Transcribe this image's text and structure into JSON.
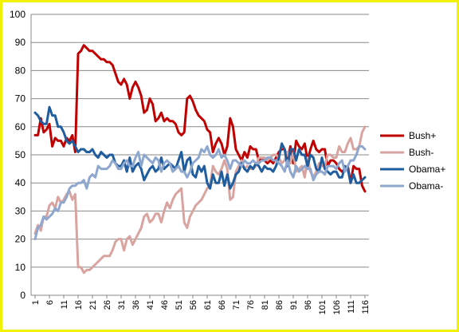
{
  "chart_data": {
    "type": "line",
    "title": "",
    "xlabel": "",
    "ylabel": "",
    "ylim": [
      0,
      100
    ],
    "yticks": [
      0,
      10,
      20,
      30,
      40,
      50,
      60,
      70,
      80,
      90,
      100
    ],
    "xlim": [
      1,
      116
    ],
    "xticks": [
      1,
      6,
      11,
      16,
      21,
      26,
      31,
      36,
      41,
      46,
      51,
      56,
      61,
      66,
      71,
      76,
      81,
      86,
      91,
      96,
      101,
      106,
      111,
      116
    ],
    "grid": "horizontal",
    "legend": "right",
    "series": [
      {
        "name": "Bush+",
        "color": "#c00000",
        "x": [
          1,
          2,
          3,
          4,
          5,
          6,
          7,
          8,
          9,
          10,
          11,
          12,
          13,
          14,
          15,
          16,
          17,
          18,
          19,
          20,
          21,
          22,
          23,
          24,
          25,
          26,
          27,
          28,
          29,
          30,
          31,
          32,
          33,
          34,
          35,
          36,
          37,
          38,
          39,
          40,
          41,
          42,
          43,
          44,
          45,
          46,
          47,
          48,
          49,
          50,
          51,
          52,
          53,
          54,
          55,
          56,
          57,
          58,
          59,
          60,
          61,
          62,
          63,
          64,
          65,
          66,
          67,
          68,
          69,
          70,
          71,
          72,
          73,
          74,
          75,
          76,
          77,
          78,
          79,
          80,
          81,
          82,
          83,
          84,
          85,
          86,
          87,
          88,
          89,
          90,
          91,
          92,
          93,
          94,
          95,
          96,
          97,
          98,
          99,
          100,
          101,
          102,
          103,
          104,
          105,
          106,
          107,
          108,
          109,
          110,
          111,
          112,
          113,
          114,
          115,
          116
        ],
        "values": [
          57,
          57,
          63,
          58,
          59,
          61,
          53,
          56,
          55,
          55,
          53,
          56,
          55,
          57,
          51,
          86,
          87,
          89,
          88,
          87,
          87,
          86,
          85,
          84,
          84,
          83,
          83,
          82,
          79,
          76,
          75,
          77,
          75,
          70,
          74,
          76,
          74,
          71,
          65,
          66,
          70,
          68,
          62,
          63,
          65,
          62,
          63,
          62,
          62,
          61,
          58,
          57,
          58,
          70,
          71,
          69,
          66,
          64,
          63,
          62,
          59,
          58,
          51,
          54,
          56,
          54,
          50,
          53,
          63,
          60,
          52,
          50,
          48,
          51,
          49,
          53,
          52,
          52,
          48,
          49,
          48,
          47,
          48,
          47,
          49,
          51,
          52,
          52,
          48,
          53,
          47,
          55,
          53,
          52,
          54,
          48,
          52,
          55,
          52,
          51,
          52,
          52,
          46,
          48,
          48,
          47,
          45,
          44,
          45,
          46,
          40,
          46,
          45,
          45,
          39,
          37
        ]
      },
      {
        "name": "Bush-",
        "color": "#d9a3a0",
        "x": [
          1,
          2,
          3,
          4,
          5,
          6,
          7,
          8,
          9,
          10,
          11,
          12,
          13,
          14,
          15,
          16,
          17,
          18,
          19,
          20,
          21,
          22,
          23,
          24,
          25,
          26,
          27,
          28,
          29,
          30,
          31,
          32,
          33,
          34,
          35,
          36,
          37,
          38,
          39,
          40,
          41,
          42,
          43,
          44,
          45,
          46,
          47,
          48,
          49,
          50,
          51,
          52,
          53,
          54,
          55,
          56,
          57,
          58,
          59,
          60,
          61,
          62,
          63,
          64,
          65,
          66,
          67,
          68,
          69,
          70,
          71,
          72,
          73,
          74,
          75,
          76,
          77,
          78,
          79,
          80,
          81,
          82,
          83,
          84,
          85,
          86,
          87,
          88,
          89,
          90,
          91,
          92,
          93,
          94,
          95,
          96,
          97,
          98,
          99,
          100,
          101,
          102,
          103,
          104,
          105,
          106,
          107,
          108,
          109,
          110,
          111,
          112,
          113,
          114,
          115,
          116
        ],
        "values": [
          22,
          25,
          23,
          28,
          28,
          32,
          33,
          31,
          35,
          33,
          34,
          36,
          37,
          34,
          36,
          10,
          10,
          8,
          9,
          9,
          10,
          11,
          12,
          13,
          14,
          14,
          14,
          16,
          19,
          20,
          20,
          16,
          20,
          21,
          18,
          20,
          22,
          24,
          28,
          29,
          26,
          27,
          29,
          29,
          26,
          30,
          33,
          31,
          34,
          36,
          37,
          38,
          26,
          24,
          28,
          30,
          32,
          33,
          34,
          36,
          38,
          39,
          46,
          44,
          43,
          45,
          48,
          45,
          34,
          35,
          44,
          46,
          48,
          45,
          46,
          45,
          45,
          46,
          49,
          49,
          49,
          48,
          49,
          50,
          50,
          49,
          47,
          48,
          51,
          47,
          51,
          44,
          45,
          46,
          42,
          49,
          44,
          42,
          44,
          47,
          46,
          46,
          50,
          50,
          49,
          49,
          53,
          51,
          51,
          54,
          56,
          52,
          52,
          53,
          58,
          60
        ]
      },
      {
        "name": "Obama+",
        "color": "#1f5d9e",
        "x": [
          1,
          2,
          3,
          4,
          5,
          6,
          7,
          8,
          9,
          10,
          11,
          12,
          13,
          14,
          15,
          16,
          17,
          18,
          19,
          20,
          21,
          22,
          23,
          24,
          25,
          26,
          27,
          28,
          29,
          30,
          31,
          32,
          33,
          34,
          35,
          36,
          37,
          38,
          39,
          40,
          41,
          42,
          43,
          44,
          45,
          46,
          47,
          48,
          49,
          50,
          51,
          52,
          53,
          54,
          55,
          56,
          57,
          58,
          59,
          60,
          61,
          62,
          63,
          64,
          65,
          66,
          67,
          68,
          69,
          70,
          71,
          72,
          73,
          74,
          75,
          76,
          77,
          78,
          79,
          80,
          81,
          82,
          83,
          84,
          85,
          86,
          87,
          88,
          89,
          90,
          91,
          92,
          93,
          94,
          95,
          96,
          97,
          98,
          99,
          100,
          101,
          102,
          103,
          104,
          105,
          106,
          107,
          108,
          109,
          110,
          111,
          112,
          113,
          114,
          115,
          116
        ],
        "values": [
          65,
          64,
          62,
          61,
          61,
          67,
          64,
          64,
          60,
          60,
          58,
          55,
          54,
          55,
          53,
          51,
          52,
          52,
          51,
          51,
          52,
          50,
          49,
          51,
          50,
          49,
          50,
          50,
          47,
          46,
          46,
          48,
          44,
          49,
          44,
          46,
          47,
          45,
          41,
          43,
          45,
          46,
          44,
          45,
          49,
          45,
          46,
          47,
          46,
          45,
          48,
          51,
          44,
          48,
          49,
          43,
          42,
          46,
          44,
          46,
          40,
          38,
          43,
          40,
          40,
          44,
          39,
          43,
          38,
          40,
          43,
          44,
          47,
          45,
          44,
          46,
          45,
          47,
          46,
          44,
          46,
          45,
          45,
          44,
          46,
          49,
          54,
          52,
          46,
          52,
          52,
          48,
          52,
          50,
          50,
          46,
          50,
          49,
          45,
          44,
          49,
          45,
          44,
          43,
          44,
          44,
          42,
          42,
          46,
          45,
          40,
          43,
          40,
          40,
          41,
          42
        ]
      },
      {
        "name": "Obama-",
        "color": "#8ea7cf",
        "x": [
          1,
          2,
          3,
          4,
          5,
          6,
          7,
          8,
          9,
          10,
          11,
          12,
          13,
          14,
          15,
          16,
          17,
          18,
          19,
          20,
          21,
          22,
          23,
          24,
          25,
          26,
          27,
          28,
          29,
          30,
          31,
          32,
          33,
          34,
          35,
          36,
          37,
          38,
          39,
          40,
          41,
          42,
          43,
          44,
          45,
          46,
          47,
          48,
          49,
          50,
          51,
          52,
          53,
          54,
          55,
          56,
          57,
          58,
          59,
          60,
          61,
          62,
          63,
          64,
          65,
          66,
          67,
          68,
          69,
          70,
          71,
          72,
          73,
          74,
          75,
          76,
          77,
          78,
          79,
          80,
          81,
          82,
          83,
          84,
          85,
          86,
          87,
          88,
          89,
          90,
          91,
          92,
          93,
          94,
          95,
          96,
          97,
          98,
          99,
          100,
          101,
          102,
          103,
          104,
          105,
          106,
          107,
          108,
          109,
          110,
          111,
          112,
          113,
          114,
          115,
          116
        ],
        "values": [
          20,
          24,
          25,
          28,
          27,
          28,
          29,
          31,
          30,
          33,
          33,
          35,
          38,
          39,
          39,
          40,
          40,
          41,
          38,
          42,
          43,
          42,
          46,
          45,
          45,
          45,
          46,
          48,
          47,
          45,
          45,
          47,
          48,
          46,
          46,
          49,
          51,
          46,
          50,
          49,
          48,
          47,
          49,
          48,
          44,
          47,
          48,
          47,
          44,
          45,
          46,
          44,
          44,
          42,
          44,
          47,
          48,
          49,
          52,
          51,
          53,
          50,
          49,
          50,
          52,
          49,
          50,
          48,
          45,
          48,
          48,
          47,
          46,
          48,
          47,
          47,
          48,
          47,
          47,
          48,
          48,
          49,
          49,
          48,
          48,
          47,
          46,
          44,
          48,
          44,
          42,
          46,
          44,
          45,
          46,
          45,
          45,
          41,
          43,
          44,
          44,
          43,
          46,
          46,
          46,
          45,
          47,
          48,
          44,
          46,
          48,
          48,
          50,
          53,
          53,
          52
        ]
      }
    ]
  }
}
